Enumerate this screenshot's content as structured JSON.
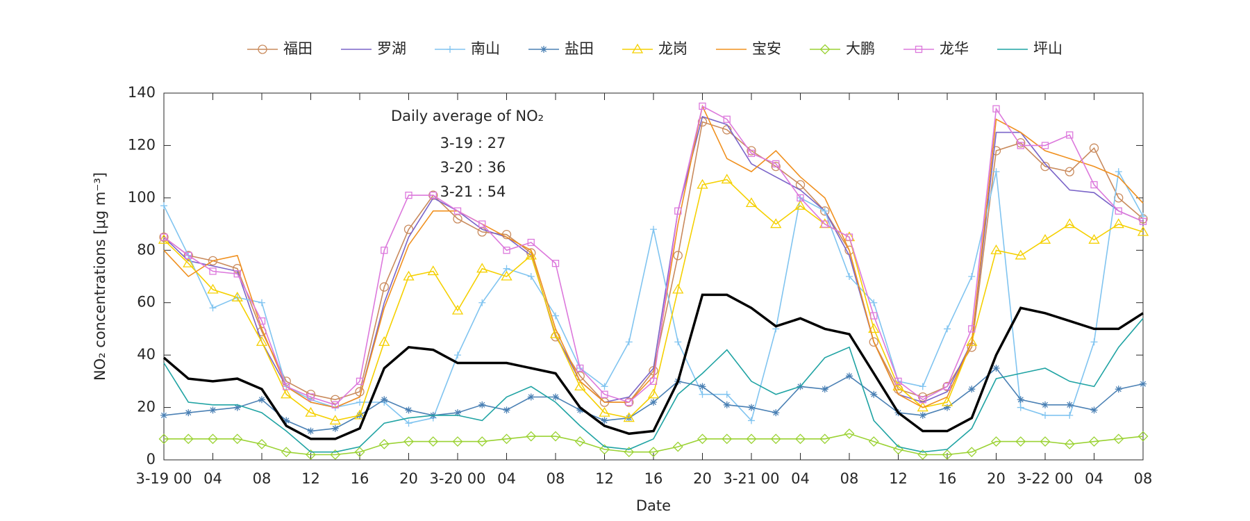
{
  "chart_data": {
    "type": "line",
    "x_label": "Date",
    "y_label": "NO₂ concentrations [μg m⁻³]",
    "annotation": {
      "title": "Daily average of NO₂",
      "lines": [
        "3-19 : 27",
        "3-20 : 36",
        "3-21 : 54"
      ]
    },
    "x": [
      0,
      2,
      4,
      6,
      8,
      10,
      12,
      14,
      16,
      18,
      20,
      22,
      24,
      26,
      28,
      30,
      32,
      34,
      36,
      38,
      40,
      42,
      44,
      46,
      48,
      50,
      52,
      54,
      56,
      58,
      60,
      62,
      64,
      66,
      68,
      70,
      72,
      74,
      76,
      78,
      80
    ],
    "xlim": [
      0,
      80
    ],
    "xticks": [
      {
        "value": 0,
        "label": "3-19 00"
      },
      {
        "value": 4,
        "label": "04"
      },
      {
        "value": 8,
        "label": "08"
      },
      12,
      16,
      20,
      {
        "value": 24,
        "label": "3-20 00"
      },
      {
        "value": 28,
        "label": "04"
      },
      {
        "value": 32,
        "label": "08"
      },
      {
        "value": 36,
        "label": "12"
      },
      {
        "value": 40,
        "label": "16"
      },
      {
        "value": 44,
        "label": "20"
      },
      {
        "value": 48,
        "label": "3-21 00"
      },
      {
        "value": 52,
        "label": "04"
      },
      {
        "value": 56,
        "label": "08"
      },
      {
        "value": 60,
        "label": "12"
      },
      {
        "value": 64,
        "label": "16"
      },
      {
        "value": 68,
        "label": "20"
      },
      {
        "value": 72,
        "label": "3-22 00"
      },
      {
        "value": 76,
        "label": "04"
      },
      {
        "value": 80,
        "label": "08"
      }
    ],
    "ylim": [
      0,
      140
    ],
    "yticks": [
      0,
      20,
      40,
      60,
      80,
      100,
      120,
      140
    ],
    "grid": false,
    "legend": "top",
    "series": [
      {
        "name": "福田",
        "color": "#c98a5c",
        "marker": "circle",
        "values": [
          85,
          78,
          76,
          73,
          49,
          30,
          25,
          23,
          26,
          66,
          88,
          101,
          92,
          87,
          86,
          79,
          47,
          32,
          22,
          22,
          34,
          78,
          129,
          126,
          118,
          112,
          105,
          95,
          80,
          45,
          27,
          24,
          28,
          43,
          118,
          121,
          112,
          110,
          119,
          100,
          92
        ]
      },
      {
        "name": "罗湖",
        "color": "#7a64c8",
        "marker": "none",
        "values": [
          85,
          76,
          74,
          72,
          45,
          28,
          22,
          20,
          24,
          60,
          85,
          100,
          95,
          88,
          85,
          78,
          48,
          30,
          22,
          24,
          35,
          95,
          131,
          128,
          113,
          108,
          103,
          95,
          78,
          45,
          25,
          22,
          26,
          45,
          125,
          125,
          113,
          103,
          102,
          95,
          91
        ]
      },
      {
        "name": "南山",
        "color": "#80c4f0",
        "marker": "plus",
        "values": [
          97,
          78,
          58,
          62,
          60,
          28,
          23,
          20,
          22,
          22,
          14,
          16,
          40,
          60,
          73,
          70,
          55,
          35,
          28,
          45,
          88,
          45,
          25,
          25,
          15,
          50,
          100,
          95,
          70,
          60,
          30,
          28,
          50,
          70,
          110,
          20,
          17,
          17,
          45,
          110,
          93
        ]
      },
      {
        "name": "盐田",
        "color": "#4a80b4",
        "marker": "asterisk",
        "values": [
          17,
          18,
          19,
          20,
          23,
          15,
          11,
          12,
          17,
          23,
          19,
          17,
          18,
          21,
          19,
          24,
          24,
          19,
          15,
          16,
          22,
          30,
          28,
          21,
          20,
          18,
          28,
          27,
          32,
          25,
          18,
          17,
          20,
          27,
          35,
          23,
          21,
          21,
          19,
          27,
          29
        ]
      },
      {
        "name": "龙岗",
        "color": "#f5d000",
        "marker": "triangle",
        "values": [
          84,
          75,
          65,
          62,
          45,
          25,
          18,
          15,
          17,
          45,
          70,
          72,
          57,
          73,
          70,
          78,
          48,
          28,
          18,
          16,
          25,
          65,
          105,
          107,
          98,
          90,
          97,
          90,
          85,
          50,
          28,
          20,
          22,
          45,
          80,
          78,
          84,
          90,
          84,
          90,
          87
        ]
      },
      {
        "name": "宝安",
        "color": "#f0901e",
        "marker": "none",
        "values": [
          80,
          70,
          76,
          78,
          50,
          28,
          22,
          20,
          24,
          58,
          82,
          95,
          95,
          90,
          85,
          80,
          50,
          30,
          22,
          22,
          32,
          90,
          135,
          115,
          110,
          118,
          108,
          100,
          80,
          45,
          25,
          20,
          24,
          45,
          130,
          125,
          118,
          115,
          112,
          108,
          98
        ]
      },
      {
        "name": "大鹏",
        "color": "#9ad232",
        "marker": "diamond",
        "values": [
          8,
          8,
          8,
          8,
          6,
          3,
          2,
          2,
          3,
          6,
          7,
          7,
          7,
          7,
          8,
          9,
          9,
          7,
          4,
          3,
          3,
          5,
          8,
          8,
          8,
          8,
          8,
          8,
          10,
          7,
          4,
          2,
          2,
          3,
          7,
          7,
          7,
          6,
          7,
          8,
          9
        ]
      },
      {
        "name": "龙华",
        "color": "#dc78dc",
        "marker": "square",
        "values": [
          85,
          78,
          72,
          71,
          53,
          28,
          24,
          21,
          30,
          80,
          101,
          101,
          95,
          90,
          80,
          83,
          75,
          35,
          25,
          22,
          30,
          95,
          135,
          130,
          117,
          113,
          100,
          90,
          85,
          55,
          30,
          23,
          28,
          50,
          134,
          120,
          120,
          124,
          105,
          95,
          91
        ]
      },
      {
        "name": "坪山",
        "color": "#1fa3a3",
        "marker": "none",
        "values": [
          37,
          22,
          21,
          21,
          18,
          11,
          3,
          3,
          5,
          14,
          16,
          17,
          17,
          15,
          24,
          28,
          22,
          13,
          5,
          4,
          8,
          25,
          33,
          42,
          30,
          25,
          28,
          39,
          43,
          15,
          5,
          3,
          4,
          12,
          31,
          33,
          35,
          30,
          28,
          43,
          54
        ]
      }
    ],
    "mean_line": {
      "color": "#000000",
      "values": [
        39,
        31,
        30,
        31,
        27,
        13,
        8,
        8,
        12,
        35,
        43,
        42,
        37,
        37,
        37,
        35,
        33,
        20,
        13,
        10,
        11,
        30,
        63,
        63,
        58,
        51,
        54,
        50,
        48,
        33,
        18,
        11,
        11,
        16,
        40,
        58,
        56,
        53,
        50,
        50,
        56
      ]
    }
  }
}
